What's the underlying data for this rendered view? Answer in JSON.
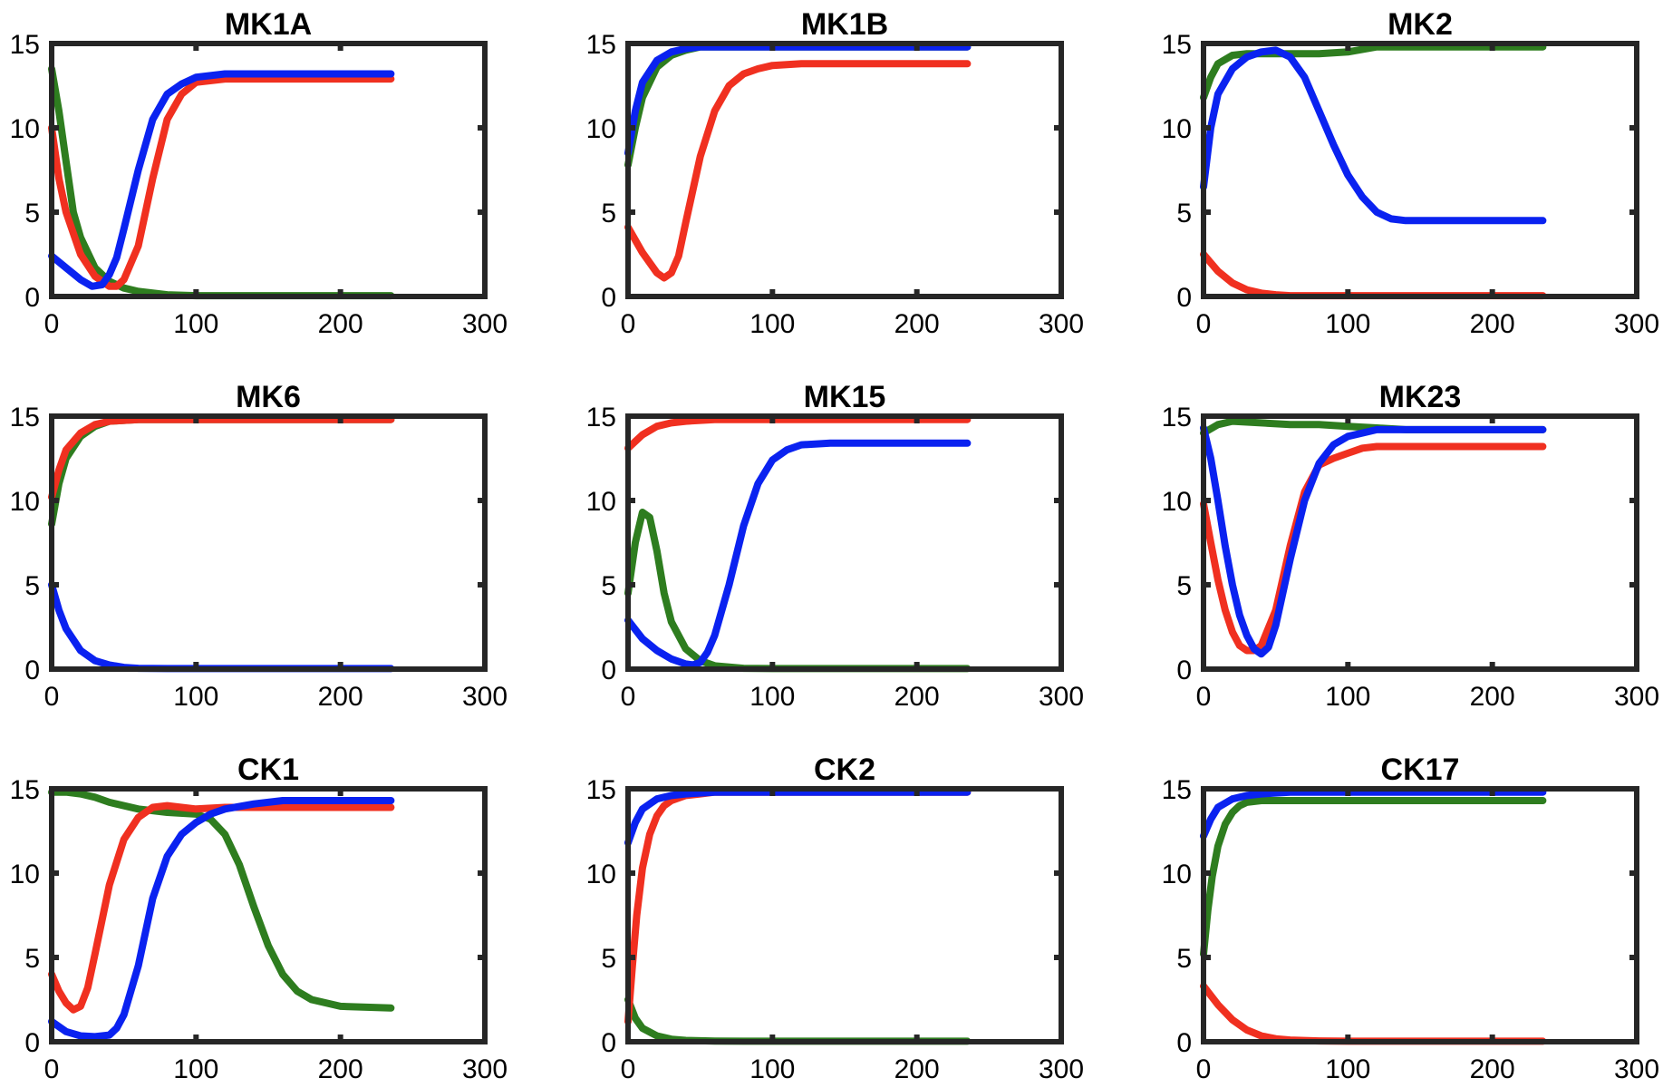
{
  "chart_data": [
    {
      "type": "line",
      "title": "MK1A",
      "xlabel": "",
      "ylabel": "",
      "xlim": [
        0,
        300
      ],
      "ylim": [
        0,
        15
      ],
      "xticks": [
        "0",
        "100",
        "200",
        "300"
      ],
      "yticks": [
        "0",
        "5",
        "10",
        "15"
      ],
      "series": [
        {
          "name": "green",
          "color": "#2E7D1F",
          "x": [
            0,
            5,
            10,
            15,
            20,
            30,
            40,
            50,
            60,
            80,
            100,
            150,
            235
          ],
          "y": [
            13.5,
            11,
            8,
            5,
            3.5,
            1.7,
            0.9,
            0.5,
            0.3,
            0.1,
            0.05,
            0.05,
            0.05
          ]
        },
        {
          "name": "red",
          "color": "#F03020",
          "x": [
            0,
            5,
            10,
            20,
            30,
            40,
            45,
            50,
            60,
            70,
            80,
            90,
            100,
            120,
            150,
            235
          ],
          "y": [
            10,
            7,
            5,
            2.5,
            1.2,
            0.6,
            0.6,
            1,
            3,
            7,
            10.5,
            12,
            12.7,
            12.9,
            12.9,
            12.9
          ]
        },
        {
          "name": "blue",
          "color": "#0A22F0",
          "x": [
            0,
            10,
            20,
            28,
            35,
            40,
            45,
            50,
            60,
            70,
            80,
            90,
            100,
            120,
            150,
            235
          ],
          "y": [
            2.4,
            1.7,
            1,
            0.6,
            0.7,
            1.3,
            2.3,
            4,
            7.5,
            10.5,
            12,
            12.6,
            13,
            13.2,
            13.2,
            13.2
          ]
        }
      ]
    },
    {
      "type": "line",
      "title": "MK1B",
      "xlabel": "",
      "ylabel": "",
      "xlim": [
        0,
        300
      ],
      "ylim": [
        0,
        15
      ],
      "xticks": [
        "0",
        "100",
        "200",
        "300"
      ],
      "yticks": [
        "0",
        "5",
        "10",
        "15"
      ],
      "series": [
        {
          "name": "green",
          "color": "#2E7D1F",
          "x": [
            0,
            5,
            10,
            20,
            30,
            40,
            50,
            60,
            80,
            100,
            235
          ],
          "y": [
            7.8,
            10,
            11.8,
            13.6,
            14.3,
            14.6,
            14.8,
            14.8,
            14.8,
            14.8,
            14.8
          ]
        },
        {
          "name": "red",
          "color": "#F03020",
          "x": [
            0,
            10,
            20,
            25,
            30,
            35,
            40,
            50,
            60,
            70,
            80,
            90,
            100,
            120,
            150,
            235
          ],
          "y": [
            4.1,
            2.6,
            1.4,
            1.1,
            1.4,
            2.4,
            4.4,
            8.3,
            11,
            12.5,
            13.2,
            13.5,
            13.7,
            13.8,
            13.8,
            13.8
          ]
        },
        {
          "name": "blue",
          "color": "#0A22F0",
          "x": [
            0,
            5,
            10,
            20,
            30,
            40,
            50,
            60,
            80,
            100,
            235
          ],
          "y": [
            8.5,
            11,
            12.7,
            14,
            14.5,
            14.7,
            14.8,
            14.8,
            14.8,
            14.8,
            14.8
          ]
        }
      ]
    },
    {
      "type": "line",
      "title": "MK2",
      "xlabel": "",
      "ylabel": "",
      "xlim": [
        0,
        300
      ],
      "ylim": [
        0,
        15
      ],
      "xticks": [
        "0",
        "100",
        "200",
        "300"
      ],
      "yticks": [
        "0",
        "5",
        "10",
        "15"
      ],
      "series": [
        {
          "name": "green",
          "color": "#2E7D1F",
          "x": [
            0,
            5,
            10,
            20,
            30,
            50,
            80,
            100,
            120,
            150,
            235
          ],
          "y": [
            11.8,
            13,
            13.8,
            14.3,
            14.4,
            14.4,
            14.4,
            14.5,
            14.8,
            14.8,
            14.8
          ]
        },
        {
          "name": "red",
          "color": "#F03020",
          "x": [
            0,
            10,
            20,
            30,
            40,
            50,
            60,
            80,
            100,
            235
          ],
          "y": [
            2.5,
            1.5,
            0.8,
            0.4,
            0.2,
            0.1,
            0.05,
            0.05,
            0.05,
            0.05
          ]
        },
        {
          "name": "blue",
          "color": "#0A22F0",
          "x": [
            0,
            5,
            10,
            20,
            30,
            40,
            50,
            60,
            70,
            80,
            90,
            100,
            110,
            120,
            130,
            140,
            150,
            235
          ],
          "y": [
            6.5,
            10,
            12,
            13.5,
            14.2,
            14.5,
            14.6,
            14.2,
            13,
            11,
            9,
            7.2,
            5.9,
            5,
            4.6,
            4.5,
            4.5,
            4.5
          ]
        }
      ]
    },
    {
      "type": "line",
      "title": "MK6",
      "xlabel": "",
      "ylabel": "",
      "xlim": [
        0,
        300
      ],
      "ylim": [
        0,
        15
      ],
      "xticks": [
        "0",
        "100",
        "200",
        "300"
      ],
      "yticks": [
        "0",
        "5",
        "10",
        "15"
      ],
      "series": [
        {
          "name": "green",
          "color": "#2E7D1F",
          "x": [
            0,
            5,
            10,
            20,
            30,
            40,
            60,
            80,
            235
          ],
          "y": [
            8.6,
            11,
            12.5,
            13.8,
            14.4,
            14.7,
            14.8,
            14.8,
            14.8
          ]
        },
        {
          "name": "red",
          "color": "#F03020",
          "x": [
            0,
            5,
            10,
            20,
            30,
            40,
            60,
            80,
            235
          ],
          "y": [
            10.2,
            11.8,
            13,
            14,
            14.5,
            14.7,
            14.8,
            14.8,
            14.8
          ]
        },
        {
          "name": "blue",
          "color": "#0A22F0",
          "x": [
            0,
            5,
            10,
            20,
            30,
            40,
            50,
            60,
            80,
            100,
            235
          ],
          "y": [
            5,
            3.5,
            2.4,
            1.1,
            0.5,
            0.25,
            0.1,
            0.05,
            0.03,
            0.03,
            0.03
          ]
        }
      ]
    },
    {
      "type": "line",
      "title": "MK15",
      "xlabel": "",
      "ylabel": "",
      "xlim": [
        0,
        300
      ],
      "ylim": [
        0,
        15
      ],
      "xticks": [
        "0",
        "100",
        "200",
        "300"
      ],
      "yticks": [
        "0",
        "5",
        "10",
        "15"
      ],
      "series": [
        {
          "name": "green",
          "color": "#2E7D1F",
          "x": [
            0,
            5,
            10,
            15,
            20,
            25,
            30,
            40,
            50,
            60,
            80,
            100,
            235
          ],
          "y": [
            4.5,
            7.5,
            9.3,
            9,
            7,
            4.5,
            2.8,
            1.2,
            0.5,
            0.2,
            0.05,
            0.03,
            0.03
          ]
        },
        {
          "name": "red",
          "color": "#F03020",
          "x": [
            0,
            10,
            20,
            30,
            40,
            60,
            80,
            235
          ],
          "y": [
            13.1,
            13.9,
            14.4,
            14.6,
            14.7,
            14.8,
            14.8,
            14.8
          ]
        },
        {
          "name": "blue",
          "color": "#0A22F0",
          "x": [
            0,
            10,
            20,
            30,
            40,
            45,
            50,
            55,
            60,
            70,
            80,
            90,
            100,
            110,
            120,
            140,
            160,
            235
          ],
          "y": [
            2.9,
            1.8,
            1.1,
            0.6,
            0.3,
            0.25,
            0.4,
            1,
            2,
            5,
            8.5,
            11,
            12.4,
            13,
            13.3,
            13.4,
            13.4,
            13.4
          ]
        }
      ]
    },
    {
      "type": "line",
      "title": "MK23",
      "xlabel": "",
      "ylabel": "",
      "xlim": [
        0,
        300
      ],
      "ylim": [
        0,
        15
      ],
      "xticks": [
        "0",
        "100",
        "200",
        "300"
      ],
      "yticks": [
        "0",
        "5",
        "10",
        "15"
      ],
      "series": [
        {
          "name": "green",
          "color": "#2E7D1F",
          "x": [
            0,
            10,
            20,
            40,
            60,
            80,
            100,
            120,
            140,
            235
          ],
          "y": [
            14,
            14.5,
            14.7,
            14.6,
            14.5,
            14.5,
            14.4,
            14.3,
            14.2,
            14.2
          ]
        },
        {
          "name": "red",
          "color": "#F03020",
          "x": [
            0,
            5,
            10,
            15,
            20,
            25,
            30,
            35,
            40,
            50,
            60,
            70,
            80,
            90,
            100,
            110,
            120,
            140,
            235
          ],
          "y": [
            9.8,
            7.5,
            5.3,
            3.5,
            2.2,
            1.4,
            1.1,
            1.1,
            1.4,
            3.5,
            7.3,
            10.5,
            12.1,
            12.5,
            12.8,
            13.1,
            13.2,
            13.2,
            13.2
          ]
        },
        {
          "name": "blue",
          "color": "#0A22F0",
          "x": [
            0,
            5,
            10,
            15,
            20,
            25,
            30,
            35,
            40,
            45,
            50,
            60,
            70,
            80,
            90,
            100,
            110,
            120,
            140,
            235
          ],
          "y": [
            14.3,
            12.5,
            10,
            7.3,
            5,
            3.2,
            2,
            1.2,
            0.9,
            1.3,
            2.6,
            6.5,
            10,
            12.2,
            13.3,
            13.8,
            14,
            14.2,
            14.2,
            14.2
          ]
        }
      ]
    },
    {
      "type": "line",
      "title": "CK1",
      "xlabel": "",
      "ylabel": "",
      "xlim": [
        0,
        300
      ],
      "ylim": [
        0,
        15
      ],
      "xticks": [
        "0",
        "100",
        "200",
        "300"
      ],
      "yticks": [
        "0",
        "5",
        "10",
        "15"
      ],
      "series": [
        {
          "name": "green",
          "color": "#2E7D1F",
          "x": [
            0,
            10,
            20,
            30,
            40,
            60,
            80,
            100,
            110,
            120,
            130,
            140,
            150,
            160,
            170,
            180,
            200,
            235
          ],
          "y": [
            14.8,
            14.8,
            14.7,
            14.5,
            14.2,
            13.8,
            13.6,
            13.5,
            13.2,
            12.3,
            10.5,
            8,
            5.7,
            4,
            3,
            2.5,
            2.1,
            2
          ]
        },
        {
          "name": "red",
          "color": "#F03020",
          "x": [
            0,
            5,
            10,
            15,
            20,
            25,
            30,
            40,
            50,
            60,
            70,
            80,
            90,
            100,
            120,
            150,
            235
          ],
          "y": [
            4,
            3,
            2.3,
            1.9,
            2.1,
            3.2,
            5.2,
            9.3,
            12,
            13.3,
            13.9,
            14,
            13.9,
            13.8,
            13.9,
            13.9,
            13.9
          ]
        },
        {
          "name": "blue",
          "color": "#0A22F0",
          "x": [
            0,
            10,
            20,
            30,
            40,
            45,
            50,
            60,
            70,
            80,
            90,
            100,
            110,
            120,
            140,
            160,
            235
          ],
          "y": [
            1.2,
            0.6,
            0.35,
            0.3,
            0.4,
            0.8,
            1.6,
            4.5,
            8.5,
            11,
            12.3,
            13,
            13.5,
            13.8,
            14.1,
            14.3,
            14.3
          ]
        }
      ]
    },
    {
      "type": "line",
      "title": "CK2",
      "xlabel": "",
      "ylabel": "",
      "xlim": [
        0,
        300
      ],
      "ylim": [
        0,
        15
      ],
      "xticks": [
        "0",
        "100",
        "200",
        "300"
      ],
      "yticks": [
        "0",
        "5",
        "10",
        "15"
      ],
      "series": [
        {
          "name": "green",
          "color": "#2E7D1F",
          "x": [
            0,
            5,
            10,
            20,
            30,
            40,
            60,
            80,
            100,
            235
          ],
          "y": [
            2.5,
            1.4,
            0.8,
            0.35,
            0.15,
            0.08,
            0.04,
            0.03,
            0.03,
            0.03
          ]
        },
        {
          "name": "red",
          "color": "#F03020",
          "x": [
            0,
            3,
            6,
            10,
            15,
            20,
            25,
            30,
            40,
            50,
            60,
            80,
            235
          ],
          "y": [
            1.2,
            4.5,
            7.5,
            10.3,
            12.3,
            13.4,
            14,
            14.3,
            14.6,
            14.7,
            14.8,
            14.8,
            14.8
          ]
        },
        {
          "name": "blue",
          "color": "#0A22F0",
          "x": [
            0,
            5,
            10,
            20,
            30,
            40,
            60,
            80,
            235
          ],
          "y": [
            11.8,
            13,
            13.8,
            14.4,
            14.6,
            14.7,
            14.8,
            14.8,
            14.8
          ]
        }
      ]
    },
    {
      "type": "line",
      "title": "CK17",
      "xlabel": "",
      "ylabel": "",
      "xlim": [
        0,
        300
      ],
      "ylim": [
        0,
        15
      ],
      "xticks": [
        "0",
        "100",
        "200",
        "300"
      ],
      "yticks": [
        "0",
        "5",
        "10",
        "15"
      ],
      "series": [
        {
          "name": "green",
          "color": "#2E7D1F",
          "x": [
            0,
            3,
            6,
            10,
            15,
            20,
            25,
            30,
            40,
            50,
            60,
            80,
            235
          ],
          "y": [
            5.2,
            7.8,
            9.8,
            11.6,
            12.9,
            13.6,
            14,
            14.2,
            14.3,
            14.3,
            14.3,
            14.3,
            14.3
          ]
        },
        {
          "name": "red",
          "color": "#F03020",
          "x": [
            0,
            10,
            20,
            30,
            40,
            50,
            60,
            80,
            100,
            235
          ],
          "y": [
            3.3,
            2.2,
            1.3,
            0.7,
            0.35,
            0.18,
            0.1,
            0.05,
            0.03,
            0.03
          ]
        },
        {
          "name": "blue",
          "color": "#0A22F0",
          "x": [
            0,
            5,
            10,
            20,
            30,
            40,
            60,
            80,
            235
          ],
          "y": [
            12.2,
            13.2,
            13.9,
            14.4,
            14.6,
            14.7,
            14.8,
            14.8,
            14.8
          ]
        }
      ]
    }
  ]
}
